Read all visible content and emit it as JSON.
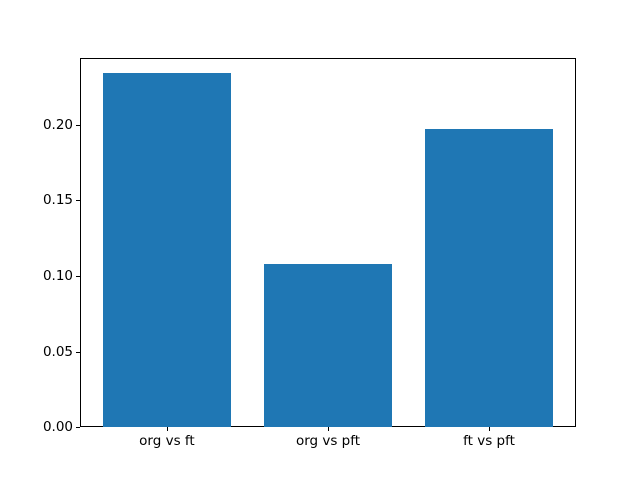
{
  "figure": {
    "background": "#ffffff"
  },
  "chart_data": {
    "type": "bar",
    "title": "",
    "xlabel": "",
    "ylabel": "",
    "categories": [
      "org vs ft",
      "org vs pft",
      "ft vs pft"
    ],
    "values": [
      0.234,
      0.108,
      0.197
    ],
    "bar_color": "#1f77b4",
    "bar_width_units": 0.8,
    "xlim": [
      -0.54,
      2.54
    ],
    "ylim": [
      0,
      0.2443
    ],
    "yticks": [
      0,
      0.05,
      0.1,
      0.15,
      0.2
    ],
    "ytick_labels": [
      "0.00",
      "0.05",
      "0.10",
      "0.15",
      "0.20"
    ],
    "grid": false,
    "legend": "none"
  }
}
